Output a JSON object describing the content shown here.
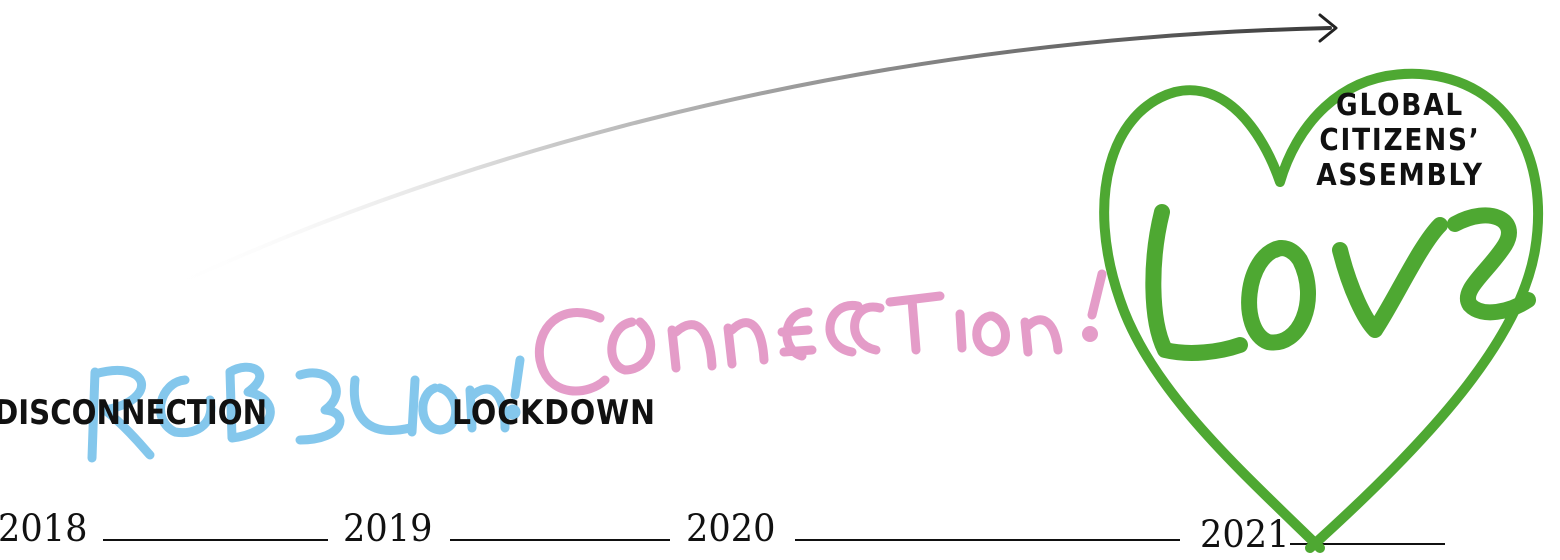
{
  "colors": {
    "rebellion": "#7ec5ec",
    "connection": "#e397c6",
    "love": "#4ea832",
    "text": "#111111",
    "arrow": "#444444"
  },
  "labels": {
    "disconnection": "DISCONNECTION",
    "lockdown": "LOCKDOWN",
    "assembly_line1": "GLOBAL",
    "assembly_line2": "CITIZENS’",
    "assembly_line3": "ASSEMBLY"
  },
  "handwriting": {
    "rebellion": "REBELLION!",
    "connection": "CONNECTION!",
    "love": "LOVE"
  },
  "years": [
    "2018",
    "2019",
    "2020",
    "2021"
  ]
}
